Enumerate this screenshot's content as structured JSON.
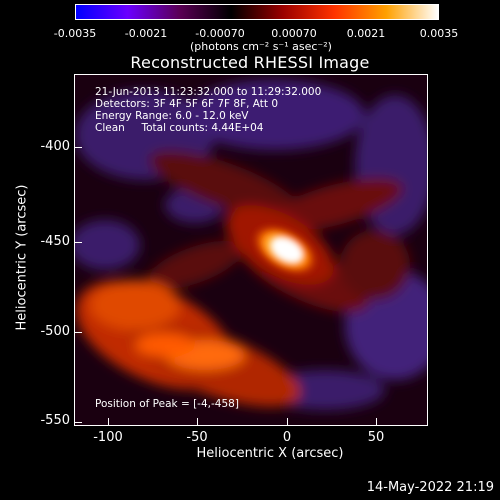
{
  "colorbar": {
    "ticks": [
      "-0.0035",
      "-0.0021",
      "-0.00070",
      "0.00070",
      "0.0021",
      "0.0035"
    ],
    "units": "(photons cm⁻² s⁻¹ asec⁻²)",
    "colors": [
      "#0000ff",
      "#6a00ff",
      "#5a0055",
      "#000000",
      "#9a0000",
      "#ff3300",
      "#ffa000",
      "#ffffff"
    ]
  },
  "title": "Reconstructed RHESSI Image",
  "overlay": {
    "line1": "21-Jun-2013 11:23:32.000 to 11:29:32.000",
    "line2": "Detectors: 3F 4F 5F 6F 7F 8F, Att 0",
    "line3": "Energy Range: 6.0 - 12.0 keV",
    "line4": "Clean     Total counts: 4.44E+04",
    "peak": "Position of Peak = [-4,-458]"
  },
  "axes": {
    "ylabel": "Heliocentric Y (arcsec)",
    "xlabel": "Heliocentric X (arcsec)",
    "xticks": [
      "-100",
      "-50",
      "0",
      "50"
    ],
    "yticks": [
      "-400",
      "-450",
      "-500",
      "-550"
    ]
  },
  "timestamp": "14-May-2022 21:19"
}
